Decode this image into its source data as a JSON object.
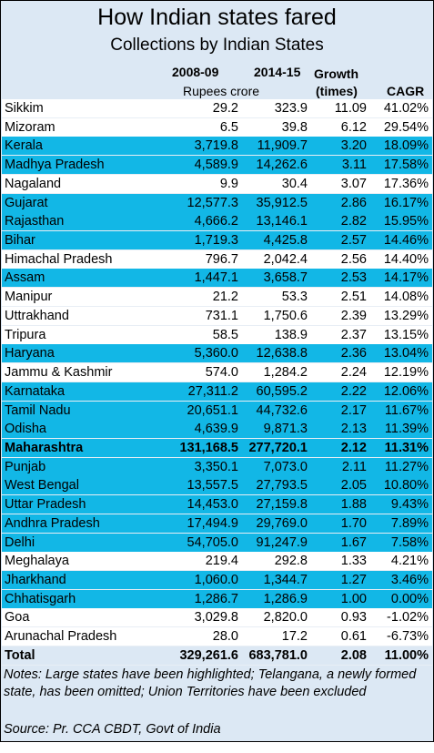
{
  "header": {
    "title": "How Indian states fared",
    "subtitle": "Collections by Indian States",
    "col_2008": "2008-09",
    "col_2014": "2014-15",
    "growth_line1": "Growth",
    "growth_line2": "(times)",
    "unit": "Rupees crore",
    "cagr": "CAGR"
  },
  "table": {
    "rows": [
      {
        "cells": [
          "Sikkim",
          "29.2",
          "323.9",
          "11.09",
          "41.02%"
        ],
        "fill": "#ffffff"
      },
      {
        "cells": [
          "Mizoram",
          "6.5",
          "39.8",
          "6.12",
          "29.54%"
        ],
        "fill": "#ffffff"
      },
      {
        "cells": [
          "Kerala",
          "3,719.8",
          "11,909.7",
          "3.20",
          "18.09%"
        ],
        "fill": "#12b7e6"
      },
      {
        "cells": [
          "Madhya Pradesh",
          "4,589.9",
          "14,262.6",
          "3.11",
          "17.58%"
        ],
        "fill": "#12b7e6"
      },
      {
        "cells": [
          "Nagaland",
          "9.9",
          "30.4",
          "3.07",
          "17.36%"
        ],
        "fill": "#ffffff"
      },
      {
        "cells": [
          "Gujarat",
          "12,577.3",
          "35,912.5",
          "2.86",
          "16.17%"
        ],
        "fill": "#12b7e6"
      },
      {
        "cells": [
          "Rajasthan",
          "4,666.2",
          "13,146.1",
          "2.82",
          "15.95%"
        ],
        "fill": "#12b7e6"
      },
      {
        "cells": [
          "Bihar",
          "1,719.3",
          "4,425.8",
          "2.57",
          "14.46%"
        ],
        "fill": "#12b7e6"
      },
      {
        "cells": [
          "Himachal Pradesh",
          "796.7",
          "2,042.4",
          "2.56",
          "14.40%"
        ],
        "fill": "#ffffff"
      },
      {
        "cells": [
          "Assam",
          "1,447.1",
          "3,658.7",
          "2.53",
          "14.17%"
        ],
        "fill": "#12b7e6"
      },
      {
        "cells": [
          "Manipur",
          "21.2",
          "53.3",
          "2.51",
          "14.08%"
        ],
        "fill": "#ffffff"
      },
      {
        "cells": [
          "Uttrakhand",
          "731.1",
          "1,750.6",
          "2.39",
          "13.29%"
        ],
        "fill": "#ffffff"
      },
      {
        "cells": [
          "Tripura",
          "58.5",
          "138.9",
          "2.37",
          "13.15%"
        ],
        "fill": "#ffffff"
      },
      {
        "cells": [
          "Haryana",
          "5,360.0",
          "12,638.8",
          "2.36",
          "13.04%"
        ],
        "fill": "#12b7e6"
      },
      {
        "cells": [
          "Jammu & Kashmir",
          "574.0",
          "1,284.2",
          "2.24",
          "12.19%"
        ],
        "fill": "#ffffff"
      },
      {
        "cells": [
          "Karnataka",
          "27,311.2",
          "60,595.2",
          "2.22",
          "12.06%"
        ],
        "fill": "#12b7e6"
      },
      {
        "cells": [
          "Tamil Nadu",
          "20,651.1",
          "44,732.6",
          "2.17",
          "11.67%"
        ],
        "fill": "#12b7e6"
      },
      {
        "cells": [
          "Odisha",
          "4,639.9",
          "9,871.3",
          "2.13",
          "11.39%"
        ],
        "fill": "#12b7e6"
      },
      {
        "cells": [
          "Maharashtra",
          "131,168.5",
          "277,720.1",
          "2.12",
          "11.31%"
        ],
        "fill": "#12b7e6",
        "bold": true
      },
      {
        "cells": [
          "Punjab",
          "3,350.1",
          "7,073.0",
          "2.11",
          "11.27%"
        ],
        "fill": "#12b7e6"
      },
      {
        "cells": [
          "West Bengal",
          "13,557.5",
          "27,793.5",
          "2.05",
          "10.80%"
        ],
        "fill": "#12b7e6"
      },
      {
        "cells": [
          "Uttar Pradesh",
          "14,453.0",
          "27,159.8",
          "1.88",
          "9.43%"
        ],
        "fill": "#12b7e6"
      },
      {
        "cells": [
          "Andhra Pradesh",
          "17,494.9",
          "29,769.0",
          "1.70",
          "7.89%"
        ],
        "fill": "#12b7e6"
      },
      {
        "cells": [
          "Delhi",
          "54,705.0",
          "91,247.9",
          "1.67",
          "7.58%"
        ],
        "fill": "#12b7e6"
      },
      {
        "cells": [
          "Meghalaya",
          "219.4",
          "292.8",
          "1.33",
          "4.21%"
        ],
        "fill": "#ffffff"
      },
      {
        "cells": [
          "Jharkhand",
          "1,060.0",
          "1,344.7",
          "1.27",
          "3.46%"
        ],
        "fill": "#12b7e6"
      },
      {
        "cells": [
          "Chhatisgarh",
          "1,286.7",
          "1,286.9",
          "1.00",
          "0.00%"
        ],
        "fill": "#12b7e6"
      },
      {
        "cells": [
          "Goa",
          "3,029.8",
          "2,820.0",
          "0.93",
          "-1.02%"
        ],
        "fill": "#ffffff"
      },
      {
        "cells": [
          "Arunachal Pradesh",
          "28.0",
          "17.2",
          "0.61",
          "-6.73%"
        ],
        "fill": "#ffffff"
      },
      {
        "cells": [
          "Total",
          "329,261.6",
          "683,781.0",
          "2.08",
          "11.00%"
        ],
        "fill": "#dce8f4",
        "bold": true
      }
    ]
  },
  "notes": "Notes: Large states have been highlighted; Telangana, a newly formed state, has been omitted; Union Territories have been excluded",
  "source": "Source: Pr. CCA CBDT, Govt of India"
}
